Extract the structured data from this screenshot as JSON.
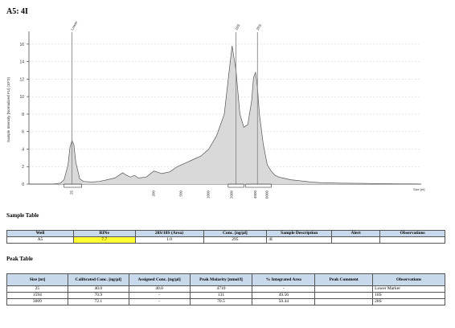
{
  "page_title": "A5: 4I",
  "chart_data": {
    "type": "area",
    "title": "",
    "ylabel": "Sample Intensity [Normalized FU] (10^3)",
    "xlabel": "Size [nt]",
    "ylim": [
      0,
      17
    ],
    "y_ticks": [
      "0",
      "2",
      "4",
      "6",
      "8",
      "10",
      "12",
      "14",
      "16"
    ],
    "x_tick_labels": [
      "25",
      "200",
      "500",
      "1000",
      "2000",
      "4000",
      "6000"
    ],
    "peak_labels": [
      "Lower",
      "18S",
      "28S"
    ],
    "profile": {
      "x": [
        0,
        3,
        6,
        8,
        9,
        10,
        10.5,
        11,
        11.5,
        12,
        13,
        14,
        16,
        18,
        20,
        22,
        24,
        25,
        26,
        27,
        28,
        30,
        32,
        34,
        36,
        38,
        40,
        42,
        44,
        46,
        48,
        50,
        51,
        52,
        53,
        54,
        55,
        56,
        57,
        57.5,
        58,
        58.5,
        59,
        60,
        61,
        62,
        63,
        64,
        65,
        66,
        67,
        68,
        70,
        72,
        75,
        80,
        85,
        90,
        95,
        100
      ],
      "y": [
        0,
        0,
        0,
        0.1,
        0.5,
        2.2,
        4.2,
        5.0,
        4.5,
        2.5,
        0.6,
        0.3,
        0.25,
        0.3,
        0.5,
        0.7,
        1.3,
        1.0,
        0.8,
        1.0,
        0.7,
        0.8,
        1.5,
        1.2,
        1.4,
        2.0,
        2.4,
        2.8,
        3.2,
        4.0,
        5.5,
        8.0,
        12.0,
        15.8,
        13.0,
        8.0,
        6.5,
        6.8,
        9.5,
        12.2,
        12.8,
        11.0,
        8.0,
        4.5,
        2.2,
        1.5,
        1.0,
        0.8,
        0.7,
        0.6,
        0.5,
        0.45,
        0.35,
        0.25,
        0.15,
        0.1,
        0.08,
        0.05,
        0.03,
        0.02
      ]
    }
  },
  "sample_table": {
    "title": "Sample Table",
    "headers": [
      "Well",
      "RINe",
      "28S/18S (Area)",
      "Conc. [ng/µl]",
      "Sample Description",
      "Alert",
      "Observations"
    ],
    "row": [
      "A5",
      "7.7",
      "1.0",
      "295",
      "4I",
      "",
      ""
    ]
  },
  "peak_table": {
    "title": "Peak Table",
    "headers": [
      "Size [nt]",
      "Calibrated Conc. [ng/µl]",
      "Assigned Conc. [ng/µl]",
      "Peak Molarity [nmol/l]",
      "% Integrated Area",
      "Peak Comment",
      "Observations"
    ],
    "rows": [
      [
        "25",
        "40.0",
        "40.0",
        "4710",
        "-",
        "",
        "Lower Marker"
      ],
      [
        "1594",
        "70.9",
        "-",
        "131",
        "49.56",
        "",
        "18S"
      ],
      [
        "3009",
        "72.1",
        "-",
        "70.5",
        "50.44",
        "",
        "28S"
      ]
    ]
  },
  "colors": {
    "fill": "#d9d9d9",
    "stroke": "#555555",
    "header_bg": "#c9d9ec",
    "highlight": "#ffff33"
  }
}
